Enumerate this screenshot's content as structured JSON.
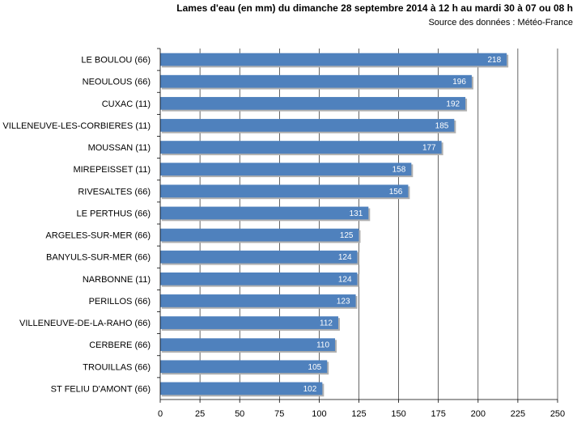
{
  "chart_data": {
    "type": "bar",
    "orientation": "horizontal",
    "title": "Lames d'eau (en mm) du dimanche  28 septembre 2014 à 12 h au mardi 30 à 07 ou 08 h",
    "subtitle": "Source des données : Météo-France",
    "categories": [
      "LE BOULOU (66)",
      "NEOULOUS (66)",
      "CUXAC (11)",
      "VILLENEUVE-LES-CORBIERES (11)",
      "MOUSSAN (11)",
      "MIREPEISSET (11)",
      "RIVESALTES (66)",
      "LE PERTHUS (66)",
      "ARGELES-SUR-MER (66)",
      "BANYULS-SUR-MER (66)",
      "NARBONNE (11)",
      "PERILLOS (66)",
      "VILLENEUVE-DE-LA-RAHO (66)",
      "CERBERE (66)",
      "TROUILLAS (66)",
      "ST FELIU D'AMONT (66)"
    ],
    "values": [
      218,
      196,
      192,
      185,
      177,
      158,
      156,
      131,
      125,
      124,
      124,
      123,
      112,
      110,
      105,
      102
    ],
    "xlim": [
      0,
      250
    ],
    "xticks": [
      0,
      25,
      50,
      75,
      100,
      125,
      150,
      175,
      200,
      225,
      250
    ],
    "grid": "vertical",
    "legend": "none",
    "bar_color": "#4f81bd",
    "bar_shadow_color": "#b0b0b0"
  }
}
